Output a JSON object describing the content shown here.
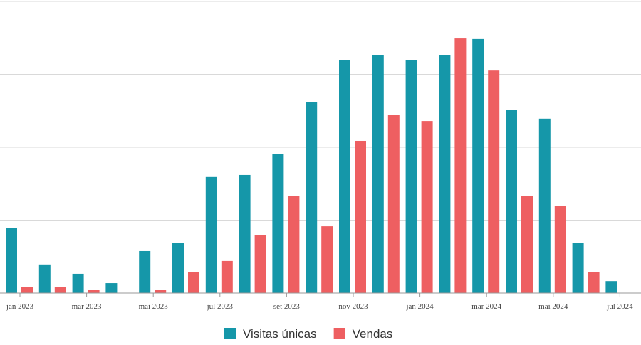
{
  "chart_data": {
    "type": "bar",
    "categories": [
      "jan 2023",
      null,
      "mar 2023",
      null,
      "mai 2023",
      null,
      "jul 2023",
      null,
      "set 2023",
      null,
      "nov 2023",
      null,
      "jan 2024",
      null,
      "mar 2024",
      null,
      "mai 2024",
      null,
      "jul 2024"
    ],
    "series": [
      {
        "name": "Visitas únicas",
        "color": "#1597a9",
        "values": [
          22.4,
          9.8,
          6.6,
          3.4,
          14.4,
          17.1,
          39.8,
          40.5,
          47.8,
          65.4,
          79.8,
          81.5,
          79.8,
          81.5,
          87.1,
          62.7,
          59.8,
          17.1,
          4.1
        ]
      },
      {
        "name": "Vendas",
        "color": "#ee5f61",
        "values": [
          2,
          2,
          1,
          0,
          1,
          7.1,
          11,
          20,
          33.2,
          22.9,
          52.2,
          61.2,
          59,
          87.3,
          76.3,
          33.2,
          30,
          7.1,
          0
        ]
      }
    ],
    "ylim": [
      0,
      100
    ],
    "yticks": [
      0,
      25,
      50,
      75,
      100
    ],
    "grid": true,
    "legend": "bottom"
  }
}
